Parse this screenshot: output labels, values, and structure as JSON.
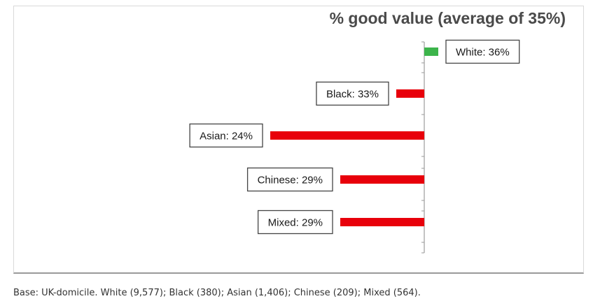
{
  "chart_data": {
    "type": "bar",
    "orientation": "horizontal",
    "title": "% good value (average of 35%)",
    "baseline": 35,
    "categories": [
      "White",
      "Black",
      "Asian",
      "Chinese",
      "Mixed"
    ],
    "values": [
      36,
      33,
      24,
      29,
      29
    ],
    "data_labels": [
      "White: 36%",
      "Black: 33%",
      "Asian: 24%",
      "Chinese: 29%",
      "Mixed: 29%"
    ],
    "colors": {
      "above_average": "#3cb44b",
      "below_average": "#e8000b"
    },
    "grid": false,
    "legend": "none"
  },
  "footnote": "Base: UK-domicile. White (9,577); Black (380); Asian (1,406); Chinese (209); Mixed (564)."
}
